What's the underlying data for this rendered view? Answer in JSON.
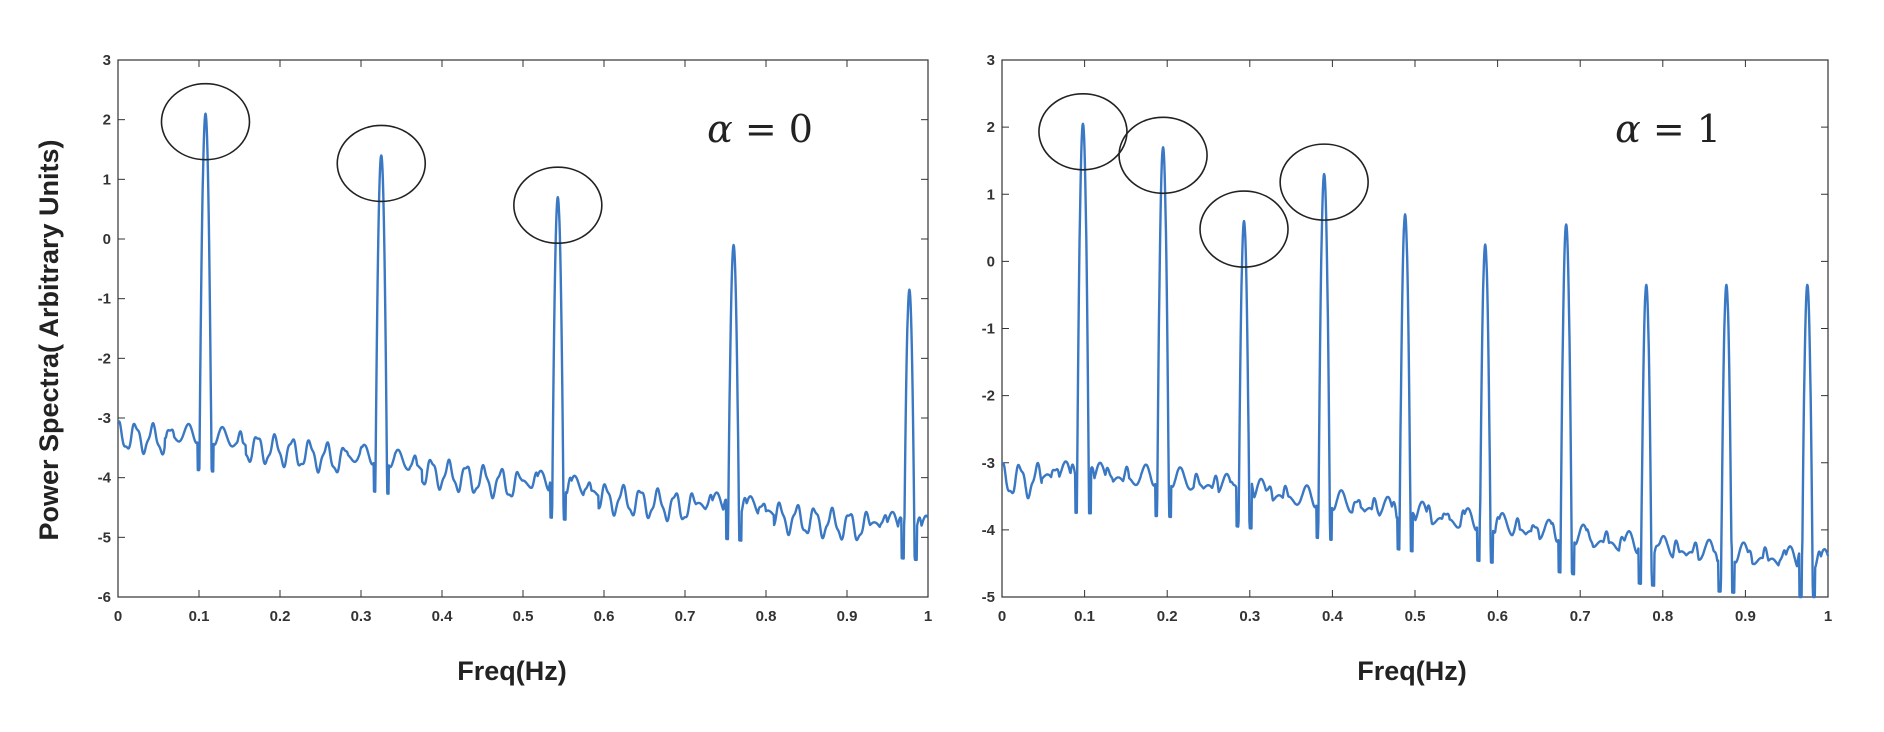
{
  "colors": {
    "line": "#3a78c3",
    "axis": "#333333",
    "circle": "#222222"
  },
  "panels": [
    {
      "ylabel": "Power Spectra( Arbitrary Units)",
      "xlabel": "Freq(Hz)",
      "alpha_symbol": "α",
      "alpha_rest": " = 0",
      "x_ticks": [
        "0",
        "0.1",
        "0.2",
        "0.3",
        "0.4",
        "0.5",
        "0.6",
        "0.7",
        "0.8",
        "0.9",
        "1"
      ],
      "y_ticks": [
        "3",
        "2",
        "1",
        "0",
        "-1",
        "-2",
        "-3",
        "-4",
        "-5",
        "-6"
      ]
    },
    {
      "ylabel": "",
      "xlabel": "Freq(Hz)",
      "alpha_symbol": "α",
      "alpha_rest": " = 1",
      "x_ticks": [
        "0",
        "0.1",
        "0.2",
        "0.3",
        "0.4",
        "0.5",
        "0.6",
        "0.7",
        "0.8",
        "0.9",
        "1"
      ],
      "y_ticks": [
        "3",
        "2",
        "1",
        "0",
        "-1",
        "-2",
        "-3",
        "-4",
        "-5"
      ]
    }
  ],
  "chart_data": [
    {
      "type": "line",
      "title": "",
      "xlabel": "Freq(Hz)",
      "ylabel": "Power Spectra( Arbitrary Units)",
      "annotation": "α = 0",
      "xlim": [
        0,
        1
      ],
      "ylim": [
        -6,
        3
      ],
      "grid": false,
      "baseline": {
        "x": [
          0,
          0.2,
          0.4,
          0.6,
          0.8,
          1.0
        ],
        "y": [
          -3.3,
          -3.55,
          -3.95,
          -4.35,
          -4.65,
          -4.95
        ]
      },
      "peaks": [
        {
          "x": 0.108,
          "y": 2.1
        },
        {
          "x": 0.325,
          "y": 1.4
        },
        {
          "x": 0.543,
          "y": 0.7
        },
        {
          "x": 0.76,
          "y": -0.1
        },
        {
          "x": 0.977,
          "y": -0.85
        }
      ],
      "circled_peaks_x": [
        0.108,
        0.325,
        0.543
      ]
    },
    {
      "type": "line",
      "title": "",
      "xlabel": "Freq(Hz)",
      "ylabel": "",
      "annotation": "α = 1",
      "xlim": [
        0,
        1
      ],
      "ylim": [
        -5,
        3
      ],
      "grid": false,
      "baseline": {
        "x": [
          0,
          0.2,
          0.4,
          0.6,
          0.8,
          1.0
        ],
        "y": [
          -3.25,
          -3.35,
          -3.7,
          -4.05,
          -4.4,
          -4.6
        ]
      },
      "peaks": [
        {
          "x": 0.098,
          "y": 2.05
        },
        {
          "x": 0.195,
          "y": 1.7
        },
        {
          "x": 0.293,
          "y": 0.6
        },
        {
          "x": 0.39,
          "y": 1.3
        },
        {
          "x": 0.488,
          "y": 0.7
        },
        {
          "x": 0.585,
          "y": 0.25
        },
        {
          "x": 0.683,
          "y": 0.55
        },
        {
          "x": 0.78,
          "y": -0.35
        },
        {
          "x": 0.877,
          "y": -0.35
        },
        {
          "x": 0.975,
          "y": -0.35
        }
      ],
      "circled_peaks_x": [
        0.098,
        0.195,
        0.293,
        0.39
      ]
    }
  ]
}
